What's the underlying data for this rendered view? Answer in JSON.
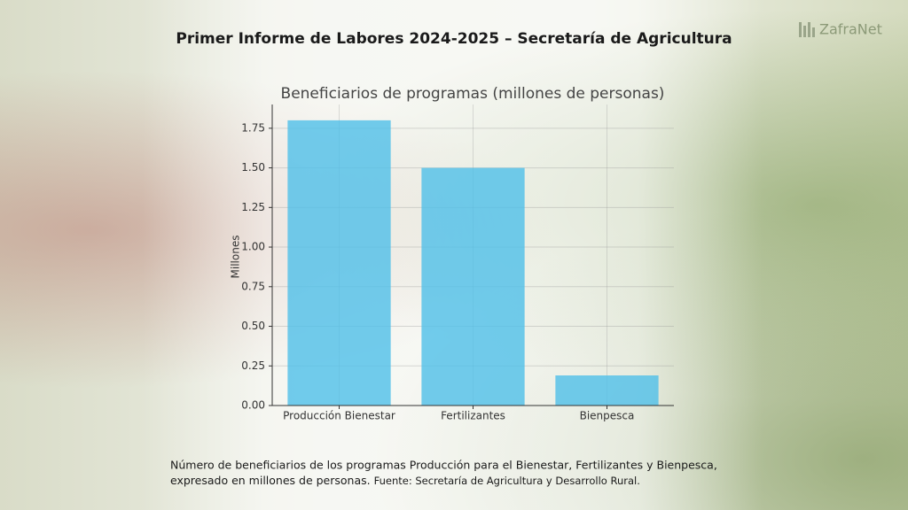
{
  "header": {
    "title": "Primer Informe de Labores 2024-2025 –  Secretaría de Agricultura",
    "brand": "ZafraNet"
  },
  "chart_data": {
    "type": "bar",
    "title": "Beneficiarios de programas (millones de personas)",
    "y_label": "Millones",
    "categories": [
      "Producción Bienestar",
      "Fertilizantes",
      "Bienpesca"
    ],
    "values": [
      1.8,
      1.5,
      0.19
    ],
    "color": "#4fbfe8",
    "ylim": [
      0,
      1.9
    ],
    "yticks": [
      {
        "value": 0,
        "label": "0.00"
      },
      0.25,
      {
        "value": 0.5,
        "label": "0.50"
      },
      0.75,
      {
        "value": 1,
        "label": "1.00"
      },
      1.25,
      {
        "value": 1.5,
        "label": "1.50"
      },
      1.75
    ],
    "grid": true
  },
  "caption": "Número de beneficiarios de los programas Producción para el Bienestar, Fertilizantes y Bienpesca,",
  "caption_2": "expresado en millones de personas.",
  "source": "Fuente: Secretaría de Agricultura y Desarrollo Rural."
}
